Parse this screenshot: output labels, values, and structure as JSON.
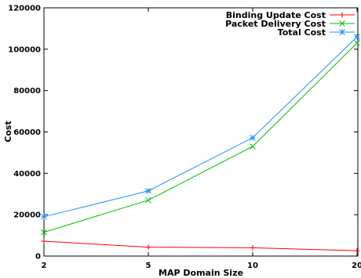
{
  "chart_data": {
    "type": "line",
    "title": "",
    "xlabel": "MAP Domain Size",
    "ylabel": "Cost",
    "x": [
      2,
      5,
      10,
      20
    ],
    "x_tick_labels": [
      "2",
      "5",
      "10",
      "20"
    ],
    "ylim": [
      0,
      120000
    ],
    "y_ticks": [
      0,
      20000,
      40000,
      60000,
      80000,
      100000,
      120000
    ],
    "y_tick_labels": [
      "0",
      "20000",
      "40000",
      "60000",
      "80000",
      "100000",
      "120000"
    ],
    "grid": false,
    "legend_position": "top-right",
    "series": [
      {
        "name": "Binding Update Cost",
        "color": "#ff0000",
        "marker": "plus",
        "values": [
          7200,
          4300,
          4000,
          2600
        ]
      },
      {
        "name": "Packet Delivery Cost",
        "color": "#00c000",
        "marker": "cross",
        "values": [
          11500,
          27000,
          53000,
          103000
        ]
      },
      {
        "name": "Total Cost",
        "color": "#1e90ff",
        "marker": "asterisk",
        "values": [
          19000,
          31500,
          57200,
          106000
        ]
      }
    ]
  }
}
